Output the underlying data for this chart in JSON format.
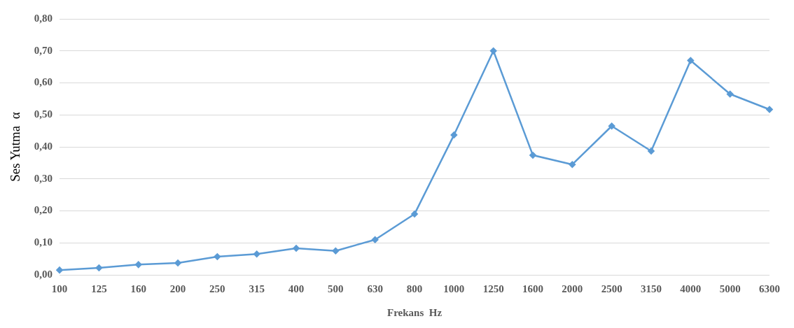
{
  "chart_data": {
    "type": "line",
    "xlabel": "Frekans  Hz",
    "ylabel": "Ses Yutma  α",
    "categories": [
      "100",
      "125",
      "160",
      "200",
      "250",
      "315",
      "400",
      "500",
      "630",
      "800",
      "1000",
      "1250",
      "1600",
      "2000",
      "2500",
      "3150",
      "4000",
      "5000",
      "6300"
    ],
    "series": [
      {
        "color": "#5b9bd5",
        "values": [
          0.015,
          0.022,
          0.032,
          0.037,
          0.057,
          0.065,
          0.083,
          0.075,
          0.11,
          0.19,
          0.437,
          0.7,
          0.374,
          0.345,
          0.465,
          0.387,
          0.67,
          0.565,
          0.517
        ]
      }
    ],
    "ylim": [
      0,
      0.8
    ],
    "yticks": [
      {
        "value": 0,
        "label": "0,00"
      },
      {
        "value": 0.1,
        "label": "0,10"
      },
      {
        "value": 0.2,
        "label": "0,20"
      },
      {
        "value": 0.3,
        "label": "0,30"
      },
      {
        "value": 0.4,
        "label": "0,40"
      },
      {
        "value": 0.5,
        "label": "0,50"
      },
      {
        "value": 0.6,
        "label": "0,60"
      },
      {
        "value": 0.7,
        "label": "0,70"
      },
      {
        "value": 0.8,
        "label": "0,80"
      }
    ],
    "grid": "y",
    "legend": false,
    "marker": "diamond",
    "line_style": "solid"
  }
}
